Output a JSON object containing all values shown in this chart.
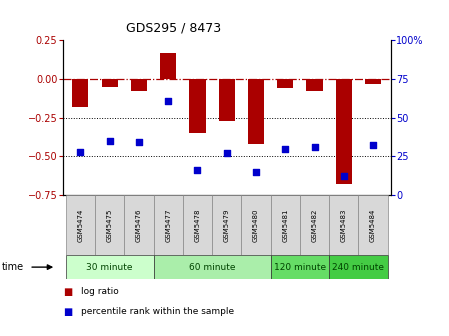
{
  "title": "GDS295 / 8473",
  "samples": [
    "GSM5474",
    "GSM5475",
    "GSM5476",
    "GSM5477",
    "GSM5478",
    "GSM5479",
    "GSM5480",
    "GSM5481",
    "GSM5482",
    "GSM5483",
    "GSM5484"
  ],
  "log_ratio": [
    -0.18,
    -0.05,
    -0.08,
    0.17,
    -0.35,
    -0.27,
    -0.42,
    -0.06,
    -0.08,
    -0.68,
    -0.03
  ],
  "percentile": [
    28,
    35,
    34,
    61,
    16,
    27,
    15,
    30,
    31,
    12,
    32
  ],
  "bar_color": "#aa0000",
  "dot_color": "#0000cc",
  "ylim_left": [
    -0.75,
    0.25
  ],
  "ylim_right": [
    0,
    100
  ],
  "yticks_left": [
    0.25,
    0,
    -0.25,
    -0.5,
    -0.75
  ],
  "yticks_right": [
    100,
    75,
    50,
    25,
    0
  ],
  "dotted_lines": [
    -0.25,
    -0.5
  ],
  "groups": [
    {
      "label": "30 minute",
      "start": 0,
      "end": 2,
      "color": "#ccffcc"
    },
    {
      "label": "60 minute",
      "start": 3,
      "end": 6,
      "color": "#aaeeaa"
    },
    {
      "label": "120 minute",
      "start": 7,
      "end": 8,
      "color": "#66dd66"
    },
    {
      "label": "240 minute",
      "start": 9,
      "end": 10,
      "color": "#44cc44"
    }
  ],
  "time_label": "time",
  "legend_log": "log ratio",
  "legend_pct": "percentile rank within the sample",
  "background_color": "#ffffff",
  "plot_bg": "#ffffff",
  "bar_width": 0.55,
  "dot_size": 25
}
